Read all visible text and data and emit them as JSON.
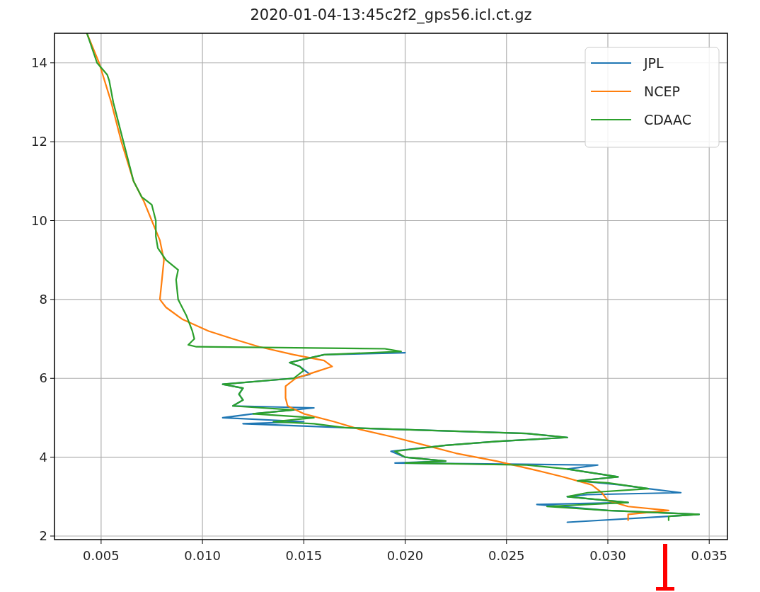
{
  "chart_data": {
    "type": "line",
    "title": "2020-01-04-13:45c2f2_gps56.icl.ct.gz",
    "xlim": [
      0.0027,
      0.0359
    ],
    "ylim": [
      1.91,
      14.75
    ],
    "xticks": [
      0.005,
      {
        "value": 0.01,
        "label": "0.010"
      },
      0.015,
      {
        "value": 0.02,
        "label": "0.020"
      },
      0.025,
      {
        "value": 0.03,
        "label": "0.030"
      },
      0.035
    ],
    "yticks": [
      2,
      4,
      6,
      8,
      10,
      12,
      14
    ],
    "grid": true,
    "legend": "top right",
    "line_style": "solid",
    "marker": "none",
    "series": [
      {
        "name": "JPL",
        "color": "#1f77b4",
        "x": [
          0.02,
          0.016,
          0.0143,
          0.0148,
          0.0153,
          0.0145,
          0.011,
          0.012,
          0.0118,
          0.012,
          0.0115,
          0.0155,
          0.0125,
          0.011,
          0.015,
          0.012,
          0.017,
          0.026,
          0.028,
          0.0245,
          0.022,
          0.0193,
          0.02,
          0.022,
          0.0195,
          0.0295,
          0.028,
          0.0305,
          0.0285,
          0.0306,
          0.032,
          0.0336,
          0.029,
          0.028,
          0.031,
          0.0265,
          0.03,
          0.0345,
          0.033,
          0.028
        ],
        "values": [
          6.65,
          6.6,
          6.4,
          6.3,
          6.1,
          6,
          5.85,
          5.75,
          5.6,
          5.45,
          5.3,
          5.25,
          5.1,
          5,
          4.9,
          4.85,
          4.75,
          4.6,
          4.5,
          4.4,
          4.3,
          4.15,
          4,
          3.9,
          3.85,
          3.8,
          3.7,
          3.5,
          3.4,
          3.3,
          3.2,
          3.1,
          3.05,
          3,
          2.85,
          2.8,
          2.65,
          2.55,
          2.5,
          2.35
        ]
      },
      {
        "name": "NCEP",
        "color": "#ff7f0e",
        "x": [
          0.0043,
          0.0049,
          0.0055,
          0.006,
          0.0066,
          0.0071,
          0.0075,
          0.0079,
          0.0081,
          0.008,
          0.0079,
          0.0082,
          0.009,
          0.0103,
          0.0115,
          0.0128,
          0.0145,
          0.016,
          0.0164,
          0.0155,
          0.0146,
          0.0141,
          0.0141,
          0.0142,
          0.015,
          0.0165,
          0.0178,
          0.0195,
          0.021,
          0.0225,
          0.0245,
          0.0262,
          0.0278,
          0.0292,
          0.0297,
          0.03,
          0.031,
          0.033,
          0.031,
          0.031
        ],
        "values": [
          14.75,
          14,
          13,
          12,
          11,
          10.5,
          10,
          9.5,
          9,
          8.5,
          8,
          7.8,
          7.5,
          7.2,
          7,
          6.8,
          6.6,
          6.45,
          6.3,
          6.15,
          6,
          5.8,
          5.5,
          5.3,
          5.1,
          4.9,
          4.7,
          4.5,
          4.3,
          4.1,
          3.9,
          3.7,
          3.5,
          3.3,
          3.1,
          2.9,
          2.75,
          2.65,
          2.55,
          2.4
        ]
      },
      {
        "name": "CDAAC",
        "color": "#2ca02c",
        "x": [
          0.0043,
          0.0048,
          0.0053,
          0.0054,
          0.0056,
          0.0061,
          0.0066,
          0.007,
          0.0075,
          0.0077,
          0.0077,
          0.0078,
          0.0082,
          0.0088,
          0.0087,
          0.0088,
          0.0092,
          0.0095,
          0.0096,
          0.0093,
          0.0097,
          0.019,
          0.0198,
          0.016,
          0.0143,
          0.0148,
          0.015,
          0.0145,
          0.011,
          0.012,
          0.0118,
          0.012,
          0.0115,
          0.0145,
          0.0125,
          0.0155,
          0.0135,
          0.0155,
          0.017,
          0.026,
          0.028,
          0.0245,
          0.022,
          0.0195,
          0.02,
          0.022,
          0.02,
          0.026,
          0.028,
          0.0305,
          0.0285,
          0.03,
          0.032,
          0.029,
          0.028,
          0.031,
          0.027,
          0.03,
          0.0345,
          0.033,
          0.033
        ],
        "values": [
          14.75,
          14,
          13.7,
          13.55,
          13,
          12,
          11,
          10.6,
          10.4,
          10,
          9.6,
          9.3,
          9,
          8.75,
          8.5,
          8,
          7.6,
          7.2,
          7,
          6.85,
          6.8,
          6.75,
          6.68,
          6.6,
          6.4,
          6.3,
          6.2,
          6,
          5.85,
          5.75,
          5.6,
          5.45,
          5.3,
          5.2,
          5.1,
          5,
          4.9,
          4.85,
          4.75,
          4.6,
          4.5,
          4.4,
          4.3,
          4.15,
          4,
          3.9,
          3.85,
          3.8,
          3.7,
          3.5,
          3.4,
          3.35,
          3.2,
          3.1,
          3,
          2.85,
          2.75,
          2.65,
          2.55,
          2.5,
          2.4
        ]
      }
    ]
  }
}
